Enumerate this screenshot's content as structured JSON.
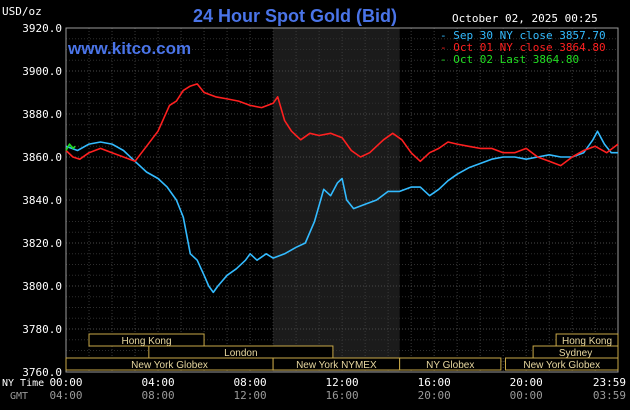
{
  "header": {
    "title": "24 Hour Spot Gold (Bid)",
    "site": "www.kitco.com",
    "unit": "USD/oz",
    "timestamp": "October 02, 2025 00:25"
  },
  "legend": [
    {
      "text": "- Sep 30 NY close 3857.70",
      "color": "#33bbff"
    },
    {
      "text": "- Oct 01 NY close 3864.80",
      "color": "#ff2020"
    },
    {
      "text": "- Oct 02 Last 3864.80",
      "color": "#22dd22"
    }
  ],
  "time_rows": {
    "ny_label": "NY Time",
    "gmt_label": "GMT",
    "ny_ticks": [
      "00:00",
      "04:00",
      "08:00",
      "12:00",
      "16:00",
      "20:00",
      "23:59"
    ],
    "gmt_ticks": [
      "04:00",
      "08:00",
      "12:00",
      "16:00",
      "20:00",
      "00:00",
      "03:59"
    ]
  },
  "sessions": [
    {
      "label": "Hong Kong",
      "hour_start": 1.0,
      "hour_end": 6.0,
      "row": 0
    },
    {
      "label": "London",
      "hour_start": 3.6,
      "hour_end": 11.6,
      "row": 1
    },
    {
      "label": "New York Globex",
      "hour_start": 0.0,
      "hour_end": 9.0,
      "row": 2
    },
    {
      "label": "New York NYMEX",
      "hour_start": 9.0,
      "hour_end": 14.5,
      "row": 2
    },
    {
      "label": "NY Globex",
      "hour_start": 14.5,
      "hour_end": 18.9,
      "row": 2
    },
    {
      "label": "Hong Kong",
      "hour_start": 21.3,
      "hour_end": 23.99,
      "row": 0
    },
    {
      "label": "Sydney",
      "hour_start": 20.3,
      "hour_end": 23.99,
      "row": 1
    },
    {
      "label": "New York Globex",
      "hour_start": 19.1,
      "hour_end": 23.99,
      "row": 2
    }
  ],
  "chart_data": {
    "type": "line",
    "title": "24 Hour Spot Gold (Bid)",
    "xlabel": "NY Time",
    "ylabel": "USD/oz",
    "x_unit": "hours since 00:00 NY time",
    "xlim": [
      0,
      23.99
    ],
    "ylim": [
      3760,
      3920
    ],
    "y_ticks": [
      3760,
      3780,
      3800,
      3820,
      3840,
      3860,
      3880,
      3900,
      3920
    ],
    "y_tick_labels": [
      "3760.0",
      "3780.0",
      "3800.0",
      "3820.0",
      "3840.0",
      "3860.0",
      "3880.0",
      "3900.0",
      "3920.0"
    ],
    "grid": true,
    "shaded_region": {
      "x_start": 9.0,
      "x_end": 14.5
    },
    "series": [
      {
        "name": "Sep 30 NY close 3857.70",
        "color": "#33bbff",
        "points": [
          [
            0,
            3865
          ],
          [
            0.5,
            3863
          ],
          [
            1.0,
            3866
          ],
          [
            1.5,
            3867
          ],
          [
            2.0,
            3866
          ],
          [
            2.5,
            3863
          ],
          [
            3.0,
            3858
          ],
          [
            3.5,
            3853
          ],
          [
            4.0,
            3850
          ],
          [
            4.4,
            3846
          ],
          [
            4.8,
            3840
          ],
          [
            5.1,
            3832
          ],
          [
            5.4,
            3815
          ],
          [
            5.7,
            3812
          ],
          [
            6.0,
            3805
          ],
          [
            6.2,
            3800
          ],
          [
            6.4,
            3797
          ],
          [
            6.6,
            3800
          ],
          [
            7.0,
            3805
          ],
          [
            7.4,
            3808
          ],
          [
            7.8,
            3812
          ],
          [
            8.0,
            3815
          ],
          [
            8.3,
            3812
          ],
          [
            8.7,
            3815
          ],
          [
            9.0,
            3813
          ],
          [
            9.5,
            3815
          ],
          [
            10.0,
            3818
          ],
          [
            10.4,
            3820
          ],
          [
            10.8,
            3830
          ],
          [
            11.2,
            3845
          ],
          [
            11.5,
            3842
          ],
          [
            11.8,
            3848
          ],
          [
            12.0,
            3850
          ],
          [
            12.2,
            3840
          ],
          [
            12.5,
            3836
          ],
          [
            13.0,
            3838
          ],
          [
            13.5,
            3840
          ],
          [
            14.0,
            3844
          ],
          [
            14.5,
            3844
          ],
          [
            15.0,
            3846
          ],
          [
            15.4,
            3846
          ],
          [
            15.8,
            3842
          ],
          [
            16.2,
            3845
          ],
          [
            16.6,
            3849
          ],
          [
            17.0,
            3852
          ],
          [
            17.5,
            3855
          ],
          [
            18.0,
            3857
          ],
          [
            18.5,
            3859
          ],
          [
            19.0,
            3860
          ],
          [
            19.5,
            3860
          ],
          [
            20.0,
            3859
          ],
          [
            20.5,
            3860
          ],
          [
            21.0,
            3861
          ],
          [
            21.5,
            3860
          ],
          [
            22.0,
            3860
          ],
          [
            22.5,
            3862
          ],
          [
            22.9,
            3868
          ],
          [
            23.1,
            3872
          ],
          [
            23.4,
            3866
          ],
          [
            23.7,
            3862
          ],
          [
            23.99,
            3862
          ]
        ]
      },
      {
        "name": "Oct 01 NY close 3864.80",
        "color": "#ff2020",
        "points": [
          [
            0,
            3863
          ],
          [
            0.3,
            3860
          ],
          [
            0.6,
            3859
          ],
          [
            1.0,
            3862
          ],
          [
            1.5,
            3864
          ],
          [
            2.0,
            3862
          ],
          [
            2.5,
            3860
          ],
          [
            3.0,
            3858
          ],
          [
            3.5,
            3865
          ],
          [
            4.0,
            3872
          ],
          [
            4.5,
            3884
          ],
          [
            4.8,
            3886
          ],
          [
            5.1,
            3891
          ],
          [
            5.4,
            3893
          ],
          [
            5.7,
            3894
          ],
          [
            6.0,
            3890
          ],
          [
            6.5,
            3888
          ],
          [
            7.0,
            3887
          ],
          [
            7.5,
            3886
          ],
          [
            8.0,
            3884
          ],
          [
            8.5,
            3883
          ],
          [
            9.0,
            3885
          ],
          [
            9.2,
            3888
          ],
          [
            9.5,
            3877
          ],
          [
            9.8,
            3872
          ],
          [
            10.2,
            3868
          ],
          [
            10.6,
            3871
          ],
          [
            11.0,
            3870
          ],
          [
            11.5,
            3871
          ],
          [
            12.0,
            3869
          ],
          [
            12.4,
            3863
          ],
          [
            12.8,
            3860
          ],
          [
            13.2,
            3862
          ],
          [
            13.8,
            3868
          ],
          [
            14.2,
            3871
          ],
          [
            14.6,
            3868
          ],
          [
            15.0,
            3862
          ],
          [
            15.4,
            3858
          ],
          [
            15.8,
            3862
          ],
          [
            16.2,
            3864
          ],
          [
            16.6,
            3867
          ],
          [
            17.0,
            3866
          ],
          [
            17.5,
            3865
          ],
          [
            18.0,
            3864
          ],
          [
            18.5,
            3864
          ],
          [
            19.0,
            3862
          ],
          [
            19.5,
            3862
          ],
          [
            20.0,
            3864
          ],
          [
            20.5,
            3860
          ],
          [
            21.0,
            3858
          ],
          [
            21.5,
            3856
          ],
          [
            22.0,
            3860
          ],
          [
            22.5,
            3863
          ],
          [
            23.0,
            3865
          ],
          [
            23.5,
            3862
          ],
          [
            23.99,
            3866
          ]
        ]
      },
      {
        "name": "Oct 02 Last 3864.80",
        "color": "#22dd22",
        "points": [
          [
            0,
            3863
          ],
          [
            0.15,
            3866
          ],
          [
            0.3,
            3864
          ],
          [
            0.4,
            3865
          ]
        ]
      }
    ]
  }
}
